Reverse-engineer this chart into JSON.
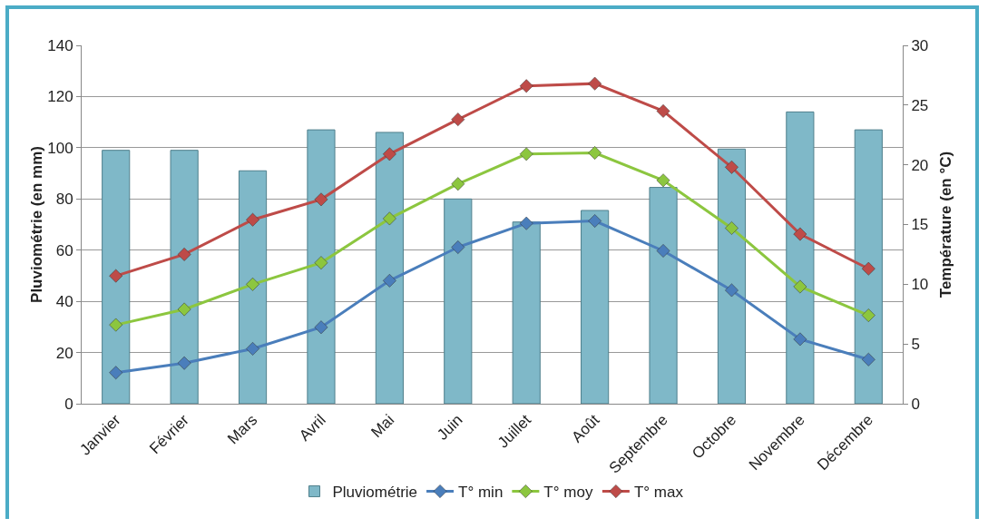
{
  "chart_data": {
    "type": "bar",
    "categories": [
      "Janvier",
      "Février",
      "Mars",
      "Avril",
      "Mai",
      "Juin",
      "Juillet",
      "Août",
      "Septembre",
      "Octobre",
      "Novembre",
      "Décembre"
    ],
    "ylabel": "Pluviométrie (en mm)",
    "y2label": "Température (en °C)",
    "ylim": [
      0,
      140
    ],
    "yticks": [
      0,
      20,
      40,
      60,
      80,
      100,
      120,
      140
    ],
    "y2lim": [
      0,
      30
    ],
    "y2ticks": [
      0,
      5,
      10,
      15,
      20,
      25,
      30
    ],
    "grid": "y",
    "legend": "bottom",
    "marker": "diamond",
    "series": [
      {
        "name": "Pluviométrie",
        "color": "#7fb8c8",
        "values": [
          99,
          99,
          91,
          107,
          106,
          80,
          71,
          75.5,
          84.5,
          99.5,
          114,
          107
        ]
      },
      {
        "name": "T° min",
        "type": "line",
        "axis": "y2",
        "color": "#4a7ebb",
        "values": [
          2.6,
          3.4,
          4.6,
          6.4,
          10.3,
          13.1,
          15.1,
          15.3,
          12.8,
          9.5,
          5.4,
          3.7
        ]
      },
      {
        "name": "T° moy",
        "type": "line",
        "axis": "y2",
        "color": "#8cc63f",
        "values": [
          6.6,
          7.9,
          10.0,
          11.8,
          15.5,
          18.4,
          20.9,
          21.0,
          18.7,
          14.7,
          9.8,
          7.4
        ]
      },
      {
        "name": "T° max",
        "type": "line",
        "axis": "y2",
        "color": "#be4b48",
        "values": [
          10.7,
          12.5,
          15.4,
          17.1,
          20.9,
          23.8,
          26.6,
          26.8,
          24.5,
          19.8,
          14.2,
          11.3
        ]
      }
    ]
  }
}
